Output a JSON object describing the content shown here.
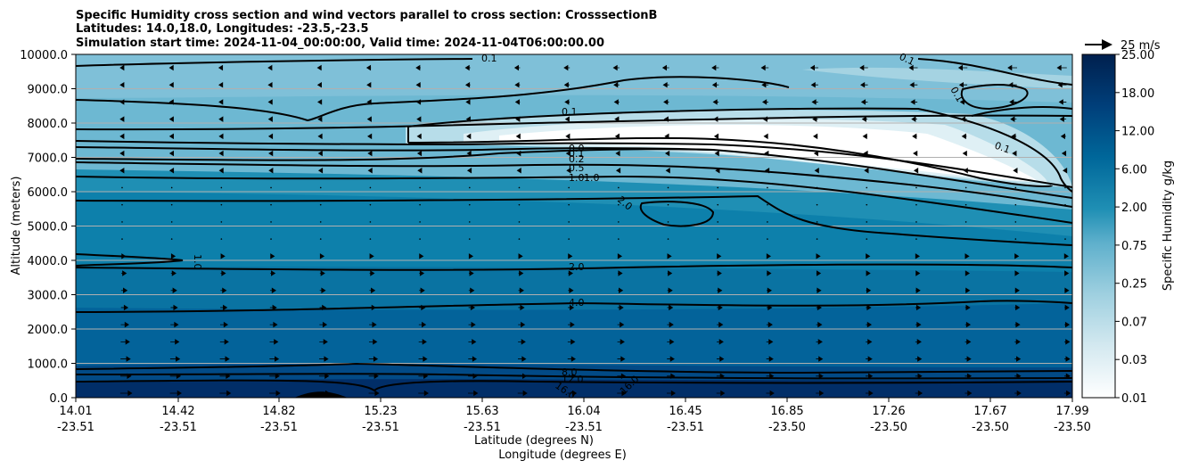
{
  "chart_data": {
    "type": "contour",
    "title": [
      "Specific Humidity cross section and wind vectors parallel to cross section: CrosssectionB",
      "Latitudes: 14.0,18.0, Longitudes: -23.5,-23.5",
      "Simulation start time: 2024-11-04_00:00:00, Valid time: 2024-11-04T06:00:00.00"
    ],
    "xlabel": "Latitude (degrees N)",
    "xlabel2": "Longitude (degrees E)",
    "ylabel": "Altitude (meters)",
    "x_ticks": [
      {
        "lat": "14.01",
        "lon": "-23.51"
      },
      {
        "lat": "14.42",
        "lon": "-23.51"
      },
      {
        "lat": "14.82",
        "lon": "-23.51"
      },
      {
        "lat": "15.23",
        "lon": "-23.51"
      },
      {
        "lat": "15.63",
        "lon": "-23.51"
      },
      {
        "lat": "16.04",
        "lon": "-23.51"
      },
      {
        "lat": "16.45",
        "lon": "-23.51"
      },
      {
        "lat": "16.85",
        "lon": "-23.50"
      },
      {
        "lat": "17.26",
        "lon": "-23.50"
      },
      {
        "lat": "17.67",
        "lon": "-23.50"
      },
      {
        "lat": "17.99",
        "lon": "-23.50"
      }
    ],
    "y_ticks": [
      "0.0",
      "1000.0",
      "2000.0",
      "3000.0",
      "4000.0",
      "5000.0",
      "6000.0",
      "7000.0",
      "8000.0",
      "9000.0",
      "10000.0"
    ],
    "ylim": [
      0,
      10000
    ],
    "grid": "horizontal",
    "colorbar": {
      "label": "Specific Humidity g/kg",
      "ticks": [
        "0.01",
        "0.03",
        "0.07",
        "0.25",
        "0.75",
        "2.00",
        "6.00",
        "12.00",
        "18.00",
        "25.00"
      ],
      "levels": 18,
      "cmap_light": "#ffffff",
      "cmap_dark": "#00204e"
    },
    "contour_labels": [
      "0.1",
      "0.1",
      "0.1",
      "0.1",
      "0.1",
      "0.0",
      "0.1",
      "0.2",
      "0.5",
      "1.0",
      "1.0",
      "2.0",
      "1.0",
      "2.0",
      "4.0",
      "8.0",
      "12.0",
      "16.0",
      "16.0"
    ],
    "quiver_key": "25 m/s"
  }
}
